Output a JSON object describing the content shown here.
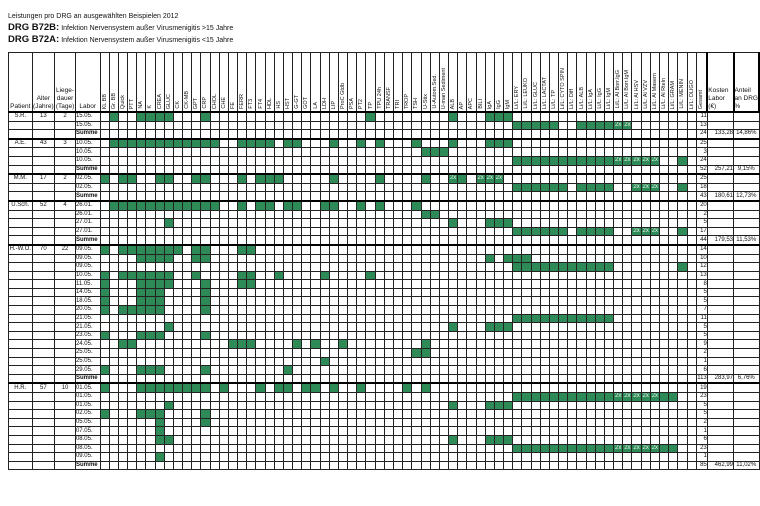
{
  "header": {
    "line1": "Leistungen pro DRG an ausgewählten Beispielen 2012",
    "drg1_code": "DRG B72B:",
    "drg1_text": "Infektion Nervensystem außer Virusmenigitis >15 Jahre",
    "drg2_code": "DRG B72A:",
    "drg2_text": "Infektion Nervensystem außer Virusmenigitis <15 Jahre"
  },
  "table": {
    "col_patient": "Patient",
    "col_alter": "Alter (Jahre)",
    "col_liege": "Liege-dauer (Tage)",
    "col_labor": "Labor",
    "col_gesamt": "Gesamt",
    "col_kosten": "Kosten Labor (€)",
    "col_anteil": "Anteil an DRG %",
    "dup_mark": "2x",
    "tests": [
      "KL BB",
      "Gr. BB",
      "Quick",
      "PTT",
      "NA",
      "K",
      "CREA",
      "GLUC",
      "CK",
      "CK-MB",
      "GPT",
      "CRP",
      "CHOL",
      "CHE",
      "FE",
      "FERR",
      "FT3",
      "FT4",
      "HDL",
      "HS",
      "HST",
      "G-GT",
      "GOT",
      "LA",
      "LDH",
      "LIP",
      "ProC Gtdb",
      "PSA",
      "PT2",
      "TP",
      "TPU 24h",
      "TRANSF",
      "TRI",
      "TROP",
      "TSH",
      "U-Stix",
      "U-Autom.Sed.",
      "U-man Sediment",
      "ALB",
      "AP",
      "APC",
      "BILI",
      "IgA",
      "IgG",
      "IgM",
      "Li/L: ERY",
      "Li/L: LEUKO",
      "Li/L: GLUC",
      "Li/L: LACTAT",
      "Li/L: TP",
      "Li/L: CYTO SPIN",
      "Li/L: Diff",
      "Li/L: ALB",
      "Li/L: IgA",
      "Li/L: IgG",
      "Li/L: IgM",
      "Li/L: Al Borr.IgG",
      "Li/L: Al Borr.IgM",
      "Li/L: Al HSV",
      "Li/L: Al VZV",
      "Li/L: Al Masern",
      "Li/L: Al Rteln",
      "Li/L: GRAM",
      "Li/L: MENIN",
      "Li/L: OLIGO"
    ],
    "rows": [
      {
        "patient": "S.R.",
        "alter": "13",
        "liege": "2",
        "labor": "15.05.",
        "gesamt": "11",
        "kosten": "",
        "anteil": "",
        "g": [
          1,
          4,
          5,
          6,
          7,
          11,
          29,
          38,
          42,
          43,
          44
        ],
        "x": []
      },
      {
        "patient": "",
        "alter": "",
        "liege": "",
        "labor": "15.05.",
        "gesamt": "13",
        "kosten": "",
        "anteil": "",
        "g": [
          45,
          46,
          47,
          48,
          49,
          52,
          53,
          54,
          55
        ],
        "x": [
          56,
          57
        ]
      },
      {
        "patient": "",
        "alter": "",
        "liege": "",
        "labor": "Summe",
        "gesamt": "24",
        "kosten": "133,28",
        "anteil": "14,86%",
        "sum": true,
        "g": [],
        "x": []
      },
      {
        "patient": "A.E.",
        "alter": "43",
        "liege": "3",
        "labor": "10.05.",
        "gesamt": "25",
        "kosten": "",
        "anteil": "",
        "g": [
          1,
          2,
          3,
          4,
          5,
          6,
          7,
          8,
          9,
          10,
          11,
          12,
          15,
          16,
          17,
          18,
          20,
          21,
          25,
          28,
          30,
          34,
          38,
          42,
          43,
          44
        ],
        "x": []
      },
      {
        "patient": "",
        "alter": "",
        "liege": "",
        "labor": "10.05.",
        "gesamt": "3",
        "kosten": "",
        "anteil": "",
        "g": [
          35,
          36,
          37
        ],
        "x": []
      },
      {
        "patient": "",
        "alter": "",
        "liege": "",
        "labor": "10.05.",
        "gesamt": "24",
        "kosten": "",
        "anteil": "",
        "g": [
          45,
          46,
          47,
          48,
          49,
          50,
          51,
          52,
          53,
          54,
          55,
          63
        ],
        "x": [
          56,
          57,
          58,
          59,
          60
        ]
      },
      {
        "patient": "",
        "alter": "",
        "liege": "",
        "labor": "Summe",
        "gesamt": "52",
        "kosten": "257,21",
        "anteil": "9,15%",
        "sum": true,
        "g": [],
        "x": []
      },
      {
        "patient": "M.M.",
        "alter": "17",
        "liege": "2",
        "labor": "02.05.",
        "gesamt": "25",
        "kosten": "",
        "anteil": "",
        "g": [
          0,
          2,
          3,
          6,
          7,
          10,
          11,
          15,
          17,
          18,
          19,
          25,
          30,
          35,
          39
        ],
        "x": [
          38,
          41,
          42,
          43
        ]
      },
      {
        "patient": "",
        "alter": "",
        "liege": "",
        "labor": "02.05.",
        "gesamt": "18",
        "kosten": "",
        "anteil": "",
        "g": [
          45,
          46,
          47,
          48,
          49,
          50,
          52,
          53,
          54,
          55,
          63
        ],
        "x": [
          58,
          59,
          60
        ]
      },
      {
        "patient": "",
        "alter": "",
        "liege": "",
        "labor": "Summe",
        "gesamt": "43",
        "kosten": "180,61",
        "anteil": "12,73%",
        "sum": true,
        "g": [],
        "x": []
      },
      {
        "patient": "U.Sch.",
        "alter": "52",
        "liege": "4",
        "labor": "26.01.",
        "gesamt": "20",
        "kosten": "",
        "anteil": "",
        "g": [
          1,
          2,
          3,
          4,
          5,
          6,
          7,
          8,
          9,
          10,
          11,
          12,
          15,
          17,
          18,
          20,
          21,
          24,
          25,
          28,
          30,
          34
        ],
        "x": []
      },
      {
        "patient": "",
        "alter": "",
        "liege": "",
        "labor": "26.01.",
        "gesamt": "2",
        "kosten": "",
        "anteil": "",
        "g": [
          35,
          36
        ],
        "x": []
      },
      {
        "patient": "",
        "alter": "",
        "liege": "",
        "labor": "27.01.",
        "gesamt": "5",
        "kosten": "",
        "anteil": "",
        "g": [
          7,
          38,
          42,
          43,
          44
        ],
        "x": []
      },
      {
        "patient": "",
        "alter": "",
        "liege": "",
        "labor": "27.01.",
        "gesamt": "17",
        "kosten": "",
        "anteil": "",
        "g": [
          45,
          46,
          47,
          48,
          49,
          50,
          52,
          53,
          54,
          55,
          63
        ],
        "x": [
          58,
          59,
          60
        ]
      },
      {
        "patient": "",
        "alter": "",
        "liege": "",
        "labor": "Summe",
        "gesamt": "44",
        "kosten": "179,53",
        "anteil": "11,53%",
        "sum": true,
        "g": [],
        "x": []
      },
      {
        "patient": "H.-W.O.",
        "alter": "70",
        "liege": "22",
        "labor": "09.05.",
        "gesamt": "14",
        "kosten": "",
        "anteil": "",
        "g": [
          0,
          2,
          3,
          4,
          5,
          6,
          7,
          8,
          10,
          11,
          15,
          16
        ],
        "x": []
      },
      {
        "patient": "",
        "alter": "",
        "liege": "",
        "labor": "09.05.",
        "gesamt": "10",
        "kosten": "",
        "anteil": "",
        "g": [
          4,
          5,
          6,
          7,
          10,
          11,
          42,
          44,
          45,
          46
        ],
        "x": []
      },
      {
        "patient": "",
        "alter": "",
        "liege": "",
        "labor": "09.05.",
        "gesamt": "12",
        "kosten": "",
        "anteil": "",
        "g": [
          45,
          46,
          47,
          48,
          49,
          50,
          51,
          52,
          53,
          54,
          55,
          63
        ],
        "x": []
      },
      {
        "patient": "",
        "alter": "",
        "liege": "",
        "labor": "10.05.",
        "gesamt": "13",
        "kosten": "",
        "anteil": "",
        "g": [
          0,
          2,
          3,
          4,
          5,
          6,
          7,
          10,
          15,
          16,
          19,
          24,
          29
        ],
        "x": []
      },
      {
        "patient": "",
        "alter": "",
        "liege": "",
        "labor": "11.05.",
        "gesamt": "8",
        "kosten": "",
        "anteil": "",
        "g": [
          0,
          4,
          5,
          6,
          7,
          11,
          15,
          16
        ],
        "x": []
      },
      {
        "patient": "",
        "alter": "",
        "liege": "",
        "labor": "14.05.",
        "gesamt": "5",
        "kosten": "",
        "anteil": "",
        "g": [
          0,
          4,
          5,
          6,
          11
        ],
        "x": []
      },
      {
        "patient": "",
        "alter": "",
        "liege": "",
        "labor": "18.05.",
        "gesamt": "5",
        "kosten": "",
        "anteil": "",
        "g": [
          0,
          4,
          5,
          6,
          11
        ],
        "x": []
      },
      {
        "patient": "",
        "alter": "",
        "liege": "",
        "labor": "20.05.",
        "gesamt": "7",
        "kosten": "",
        "anteil": "",
        "g": [
          0,
          2,
          3,
          4,
          5,
          6,
          11
        ],
        "x": []
      },
      {
        "patient": "",
        "alter": "",
        "liege": "",
        "labor": "21.05.",
        "gesamt": "11",
        "kosten": "",
        "anteil": "",
        "g": [
          45,
          46,
          47,
          48,
          49,
          50,
          51,
          52,
          53,
          54,
          55
        ],
        "x": []
      },
      {
        "patient": "",
        "alter": "",
        "liege": "",
        "labor": "21.05.",
        "gesamt": "5",
        "kosten": "",
        "anteil": "",
        "g": [
          7,
          38,
          42,
          43,
          44
        ],
        "x": []
      },
      {
        "patient": "",
        "alter": "",
        "liege": "",
        "labor": "23.05.",
        "gesamt": "5",
        "kosten": "",
        "anteil": "",
        "g": [
          0,
          4,
          5,
          6,
          11
        ],
        "x": []
      },
      {
        "patient": "",
        "alter": "",
        "liege": "",
        "labor": "24.05.",
        "gesamt": "9",
        "kosten": "",
        "anteil": "",
        "g": [
          2,
          3,
          14,
          15,
          16,
          21,
          23,
          26,
          35
        ],
        "x": []
      },
      {
        "patient": "",
        "alter": "",
        "liege": "",
        "labor": "25.05.",
        "gesamt": "2",
        "kosten": "",
        "anteil": "",
        "g": [
          34,
          35
        ],
        "x": []
      },
      {
        "patient": "",
        "alter": "",
        "liege": "",
        "labor": "25.05.",
        "gesamt": "1",
        "kosten": "",
        "anteil": "",
        "g": [
          24
        ],
        "x": []
      },
      {
        "patient": "",
        "alter": "",
        "liege": "",
        "labor": "29.05.",
        "gesamt": "6",
        "kosten": "",
        "anteil": "",
        "g": [
          0,
          4,
          5,
          6,
          11,
          20
        ],
        "x": []
      },
      {
        "patient": "",
        "alter": "",
        "liege": "",
        "labor": "Summe",
        "gesamt": "113",
        "kosten": "283,97",
        "anteil": "6,76%",
        "sum": true,
        "g": [],
        "x": []
      },
      {
        "patient": "H.R.",
        "alter": "57",
        "liege": "10",
        "labor": "01.05.",
        "gesamt": "19",
        "kosten": "",
        "anteil": "",
        "g": [
          0,
          4,
          5,
          6,
          7,
          8,
          9,
          10,
          11,
          13,
          17,
          19,
          20,
          22,
          23,
          25,
          28,
          33,
          35
        ],
        "x": []
      },
      {
        "patient": "",
        "alter": "",
        "liege": "",
        "labor": "01.05.",
        "gesamt": "23",
        "kosten": "",
        "anteil": "",
        "g": [
          45,
          46,
          47,
          48,
          49,
          50,
          51,
          52,
          53,
          54,
          55,
          56,
          57,
          58,
          59,
          60,
          61,
          62
        ],
        "x": [
          56,
          57,
          58,
          59,
          60
        ]
      },
      {
        "patient": "",
        "alter": "",
        "liege": "",
        "labor": "01.05.",
        "gesamt": "5",
        "kosten": "",
        "anteil": "",
        "g": [
          7,
          38,
          42,
          43,
          44
        ],
        "x": []
      },
      {
        "patient": "",
        "alter": "",
        "liege": "",
        "labor": "02.05.",
        "gesamt": "5",
        "kosten": "",
        "anteil": "",
        "g": [
          0,
          4,
          5,
          6,
          11
        ],
        "x": []
      },
      {
        "patient": "",
        "alter": "",
        "liege": "",
        "labor": "05.05.",
        "gesamt": "2",
        "kosten": "",
        "anteil": "",
        "g": [
          6,
          11
        ],
        "x": []
      },
      {
        "patient": "",
        "alter": "",
        "liege": "",
        "labor": "07.05.",
        "gesamt": "1",
        "kosten": "",
        "anteil": "",
        "g": [
          6
        ],
        "x": []
      },
      {
        "patient": "",
        "alter": "",
        "liege": "",
        "labor": "08.05.",
        "gesamt": "6",
        "kosten": "",
        "anteil": "",
        "g": [
          6,
          7,
          38,
          42,
          43,
          44
        ],
        "x": []
      },
      {
        "patient": "",
        "alter": "",
        "liege": "",
        "labor": "08.05.",
        "gesamt": "23",
        "kosten": "",
        "anteil": "",
        "g": [
          45,
          46,
          47,
          48,
          49,
          50,
          51,
          52,
          53,
          54,
          55,
          56,
          57,
          58,
          59,
          60,
          61,
          62
        ],
        "x": [
          56,
          57,
          58,
          59,
          60
        ]
      },
      {
        "patient": "",
        "alter": "",
        "liege": "",
        "labor": "09.05.",
        "gesamt": "1",
        "kosten": "",
        "anteil": "",
        "g": [
          6
        ],
        "x": []
      },
      {
        "patient": "",
        "alter": "",
        "liege": "",
        "labor": "Summe",
        "gesamt": "85",
        "kosten": "462,99",
        "anteil": "11,02%",
        "sum": true,
        "g": [],
        "x": []
      }
    ]
  },
  "colors": {
    "marked": "#2e8b57",
    "grid": "#222222"
  }
}
